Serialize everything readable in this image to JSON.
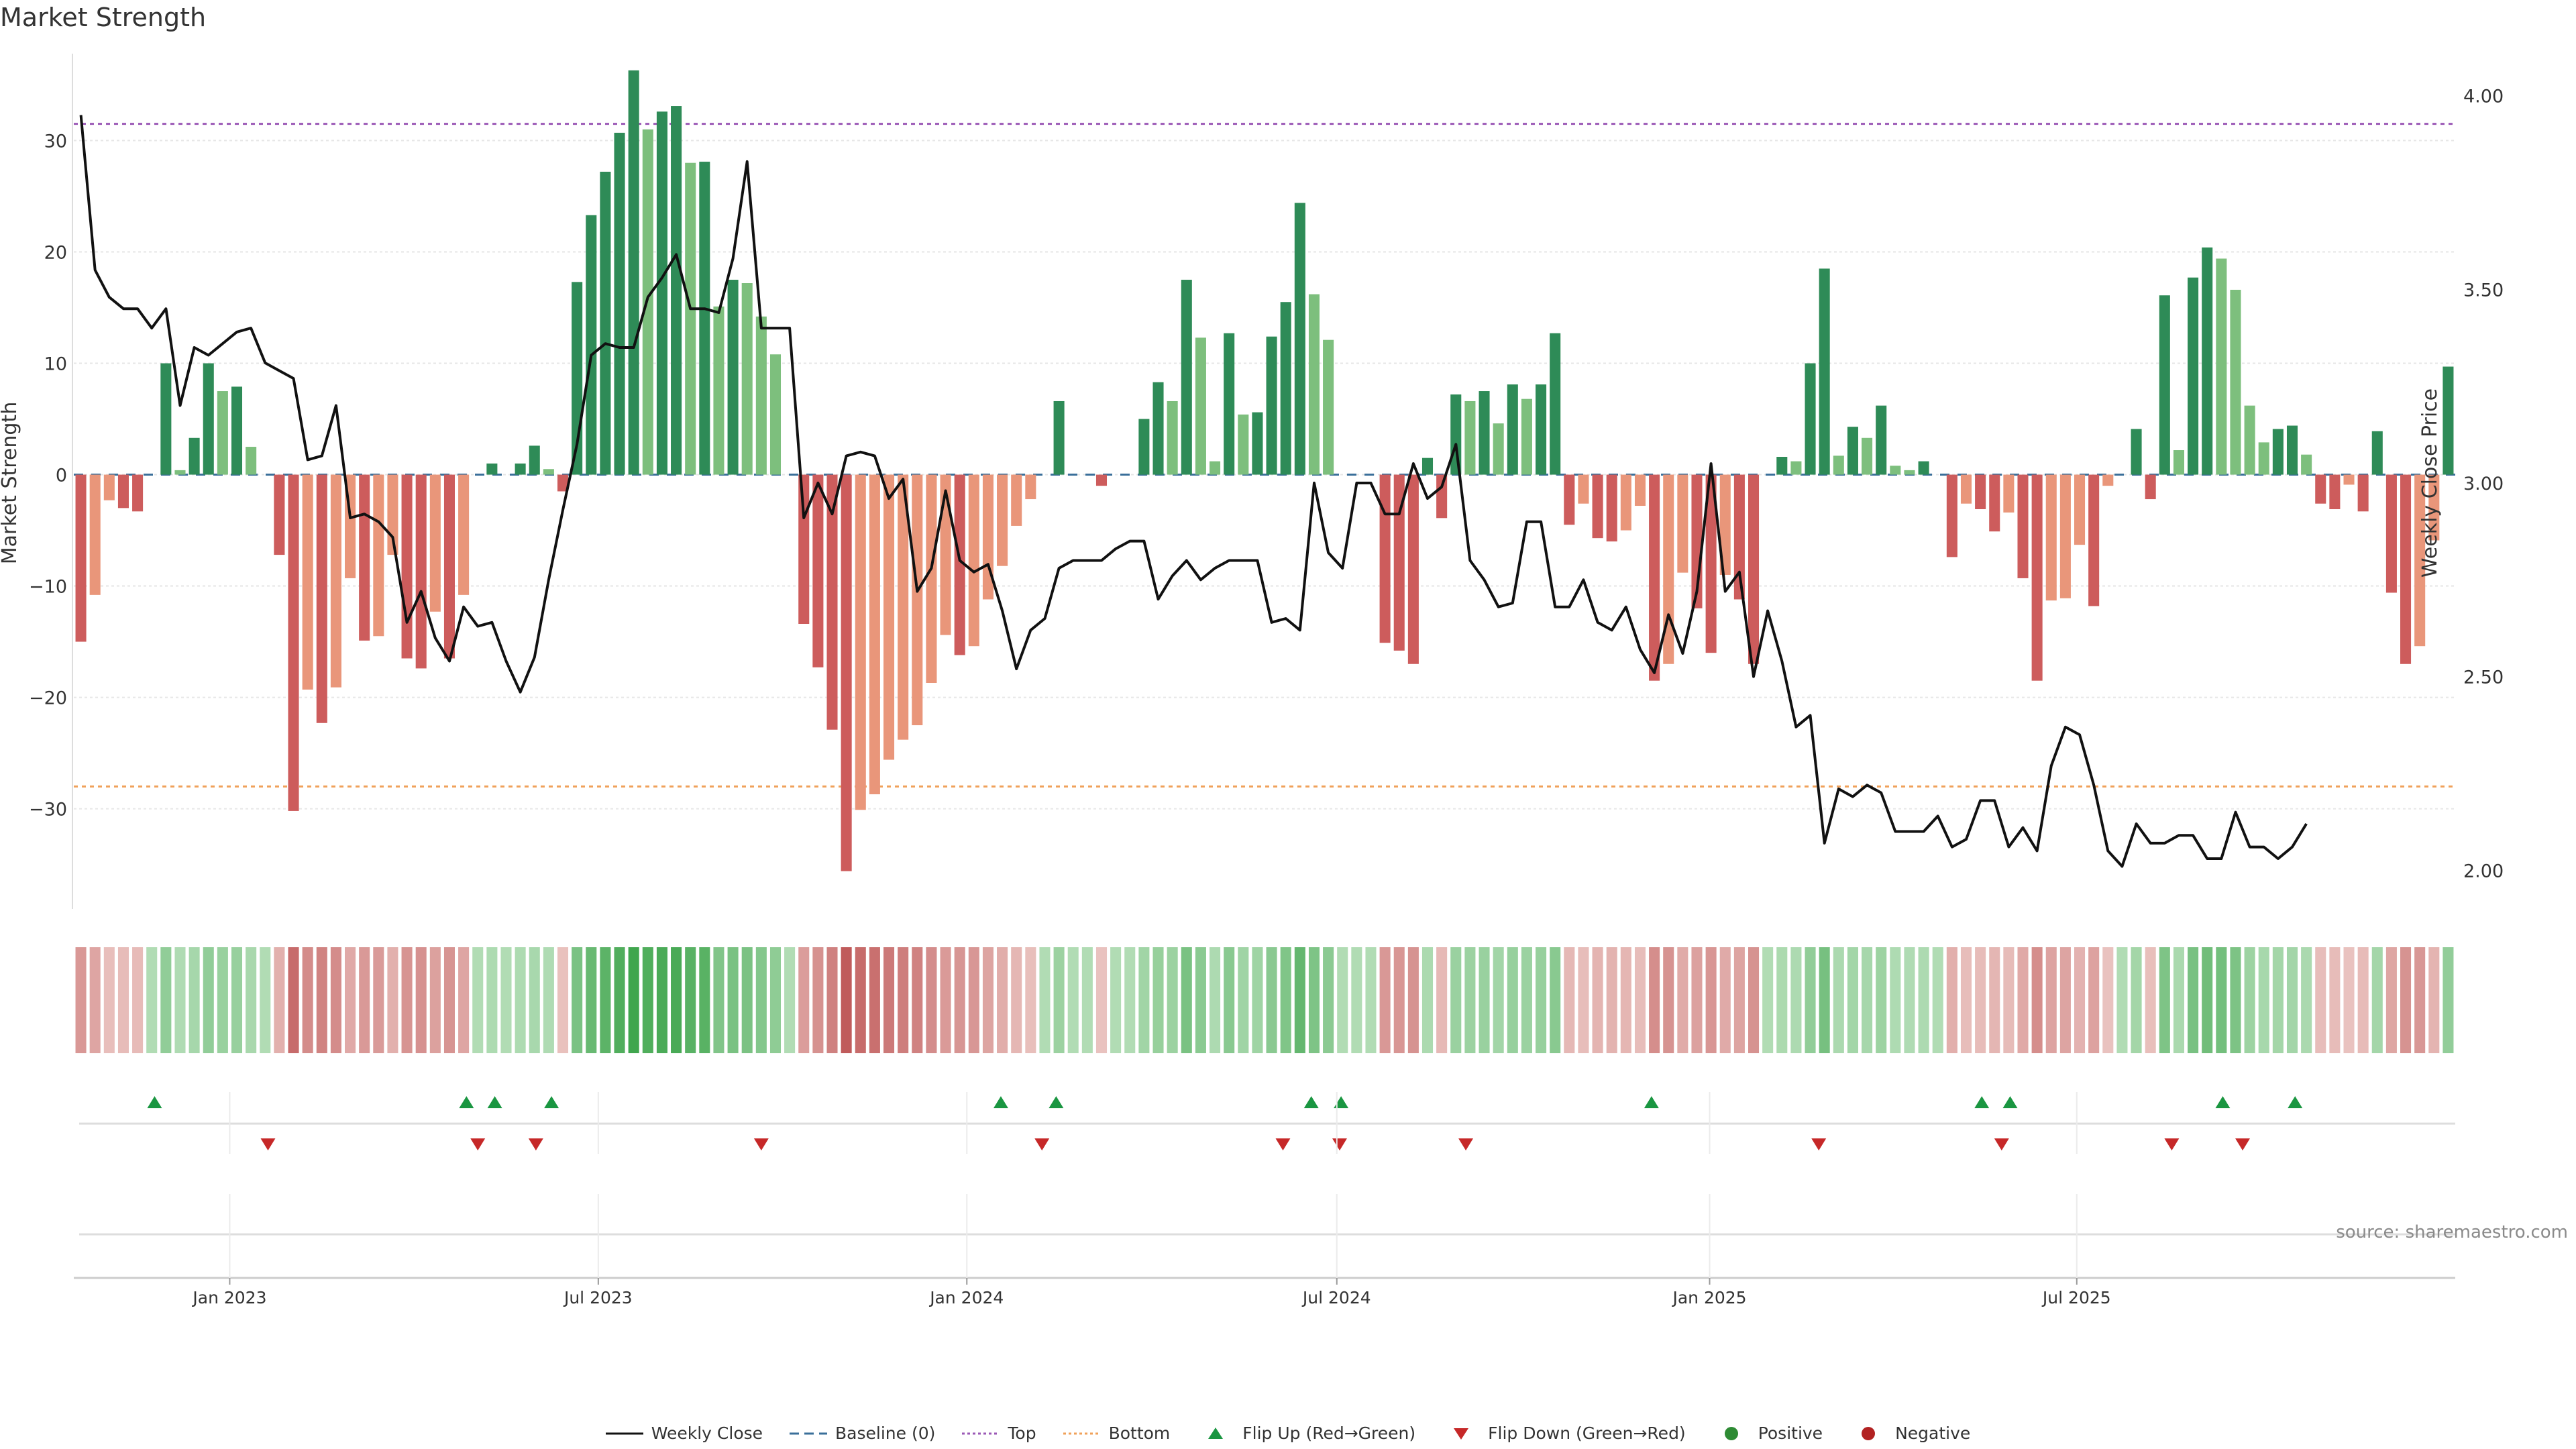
{
  "chart_data": {
    "type": "bar",
    "title": "Market Strength",
    "ylabel": "Market Strength",
    "y2label": "Weekly Close Price",
    "ylim": [
      -39,
      37.5
    ],
    "y2lim": [
      1.9,
      4.1
    ],
    "yticks": [
      30,
      20,
      10,
      0,
      -10,
      -20,
      -30
    ],
    "y2ticks": [
      "4.00",
      "3.50",
      "3.00",
      "2.50",
      "2.00"
    ],
    "y2tick_values": [
      4.0,
      3.5,
      3.0,
      2.5,
      2.0
    ],
    "x_start": "2022-11-13",
    "x_labels": [
      "Jan 2023",
      "Jul 2023",
      "Jan 2024",
      "Jul 2024",
      "Jan 2025",
      "Jul 2025"
    ],
    "x_label_weeks": [
      10.5,
      36.5,
      62.5,
      88.6,
      114.9,
      140.8
    ],
    "top_line": 31.5,
    "bottom_line": -28,
    "strength": [
      -15,
      -10.8,
      -2.3,
      -3,
      -3.3,
      0,
      10,
      0.4,
      3.3,
      10,
      7.5,
      7.9,
      2.5,
      0,
      -7.2,
      -30.2,
      -19.3,
      -22.3,
      -19.1,
      -9.3,
      -14.9,
      -14.5,
      -7.2,
      -16.5,
      -17.4,
      -12.3,
      -16.5,
      -10.8,
      0,
      1,
      0,
      1,
      2.6,
      0.5,
      -1.5,
      17.3,
      23.3,
      27.2,
      30.7,
      36.3,
      31,
      32.6,
      33.1,
      28,
      28.1,
      15.1,
      17.5,
      17.2,
      14.2,
      10.8,
      0,
      -13.4,
      -17.3,
      -22.9,
      -35.6,
      -30.1,
      -28.7,
      -25.6,
      -23.8,
      -22.5,
      -18.7,
      -14.4,
      -16.2,
      -15.4,
      -11.2,
      -8.2,
      -4.6,
      -2.2,
      0,
      6.6,
      0,
      0,
      -1,
      0,
      0,
      5,
      8.3,
      6.6,
      17.5,
      12.3,
      1.2,
      12.7,
      5.4,
      5.6,
      12.4,
      15.5,
      24.4,
      16.2,
      12.1,
      0,
      0,
      0,
      -15.1,
      -15.8,
      -17,
      1.5,
      -3.9,
      7.2,
      6.6,
      7.5,
      4.6,
      8.1,
      6.8,
      8.1,
      12.7,
      -4.5,
      -2.6,
      -5.7,
      -6,
      -5,
      -2.8,
      -18.5,
      -17,
      -8.8,
      -12,
      -16,
      -9,
      -11.2,
      -17,
      0,
      1.6,
      1.2,
      10,
      18.5,
      1.7,
      4.3,
      3.3,
      6.2,
      0.8,
      0.4,
      1.2,
      0,
      -7.4,
      -2.6,
      -3.1,
      -5.1,
      -3.4,
      -9.3,
      -18.5,
      -11.3,
      -11.1,
      -6.3,
      -11.8,
      -1,
      0,
      4.1,
      -2.2,
      16.1,
      2.2,
      17.7,
      20.4,
      19.4,
      16.6,
      6.2,
      2.9,
      4.1,
      4.4,
      1.8,
      -2.6,
      -3.1,
      -0.9,
      -3.3,
      3.9,
      -10.6,
      -17,
      -15.4,
      -5.9,
      9.7
    ],
    "close": [
      3.95,
      3.55,
      3.48,
      3.45,
      3.45,
      3.4,
      3.45,
      3.2,
      3.35,
      3.33,
      3.36,
      3.39,
      3.4,
      3.31,
      3.29,
      3.27,
      3.06,
      3.07,
      3.2,
      2.91,
      2.92,
      2.9,
      2.86,
      2.64,
      2.72,
      2.6,
      2.54,
      2.68,
      2.63,
      2.64,
      2.54,
      2.46,
      2.55,
      2.75,
      2.93,
      3.1,
      3.33,
      3.36,
      3.35,
      3.35,
      3.48,
      3.53,
      3.59,
      3.45,
      3.45,
      3.44,
      3.58,
      3.83,
      3.4,
      3.4,
      3.4,
      2.91,
      3.0,
      2.92,
      3.07,
      3.08,
      3.07,
      2.96,
      3.01,
      2.72,
      2.78,
      2.98,
      2.8,
      2.77,
      2.79,
      2.67,
      2.52,
      2.62,
      2.65,
      2.78,
      2.8,
      2.8,
      2.8,
      2.83,
      2.85,
      2.85,
      2.7,
      2.76,
      2.8,
      2.75,
      2.78,
      2.8,
      2.8,
      2.8,
      2.64,
      2.65,
      2.62,
      3.0,
      2.82,
      2.78,
      3.0,
      3.0,
      2.92,
      2.92,
      3.05,
      2.96,
      2.99,
      3.1,
      2.8,
      2.75,
      2.68,
      2.69,
      2.9,
      2.9,
      2.68,
      2.68,
      2.75,
      2.64,
      2.62,
      2.68,
      2.57,
      2.51,
      2.66,
      2.56,
      2.72,
      3.05,
      2.72,
      2.77,
      2.5,
      2.67,
      2.54,
      2.37,
      2.4,
      2.07,
      2.21,
      2.19,
      2.22,
      2.2,
      2.1,
      2.1,
      2.1,
      2.14,
      2.06,
      2.08,
      2.18,
      2.18,
      2.06,
      2.11,
      2.05,
      2.27,
      2.37,
      2.35,
      2.22,
      2.05,
      2.01,
      2.12,
      2.07,
      2.07,
      2.09,
      2.09,
      2.03,
      2.03,
      2.15,
      2.06,
      2.06,
      2.03,
      2.06,
      2.12
    ],
    "flip_up_weeks": [
      5.2,
      27.2,
      29.2,
      33.2,
      64.9,
      68.8,
      86.8,
      88.9,
      110.8,
      134.1,
      136.1,
      151.1,
      156.2
    ],
    "flip_down_weeks": [
      13.2,
      28,
      32.1,
      48,
      67.8,
      84.8,
      88.8,
      97.7,
      122.6,
      135.5,
      147.5,
      152.5
    ],
    "legend": [
      {
        "label": "Weekly Close",
        "kind": "line",
        "color": "#111111"
      },
      {
        "label": "Baseline (0)",
        "kind": "dashed",
        "color": "#3a6f9a"
      },
      {
        "label": "Top",
        "kind": "dotted",
        "color": "#9b59b6"
      },
      {
        "label": "Bottom",
        "kind": "dotted",
        "color": "#f0a15a"
      },
      {
        "label": "Flip Up (Red→Green)",
        "kind": "tri-up",
        "color": "#1a9641"
      },
      {
        "label": "Flip Down (Green→Red)",
        "kind": "tri-down",
        "color": "#c62828"
      },
      {
        "label": "Positive",
        "kind": "dot",
        "color": "#2e8b34"
      },
      {
        "label": "Negative",
        "kind": "dot",
        "color": "#b22222"
      }
    ],
    "colors": {
      "pos_dark": "#2e8b57",
      "pos_light": "#7dbf7d",
      "neg_dark": "#cd5c5c",
      "neg_light": "#e9967a",
      "close": "#111111",
      "top": "#9b59b6",
      "bottom": "#f0a15a",
      "grid": "#e6e6e6",
      "axis_text": "#333333"
    }
  },
  "source_note": "source: sharemaestro.com"
}
